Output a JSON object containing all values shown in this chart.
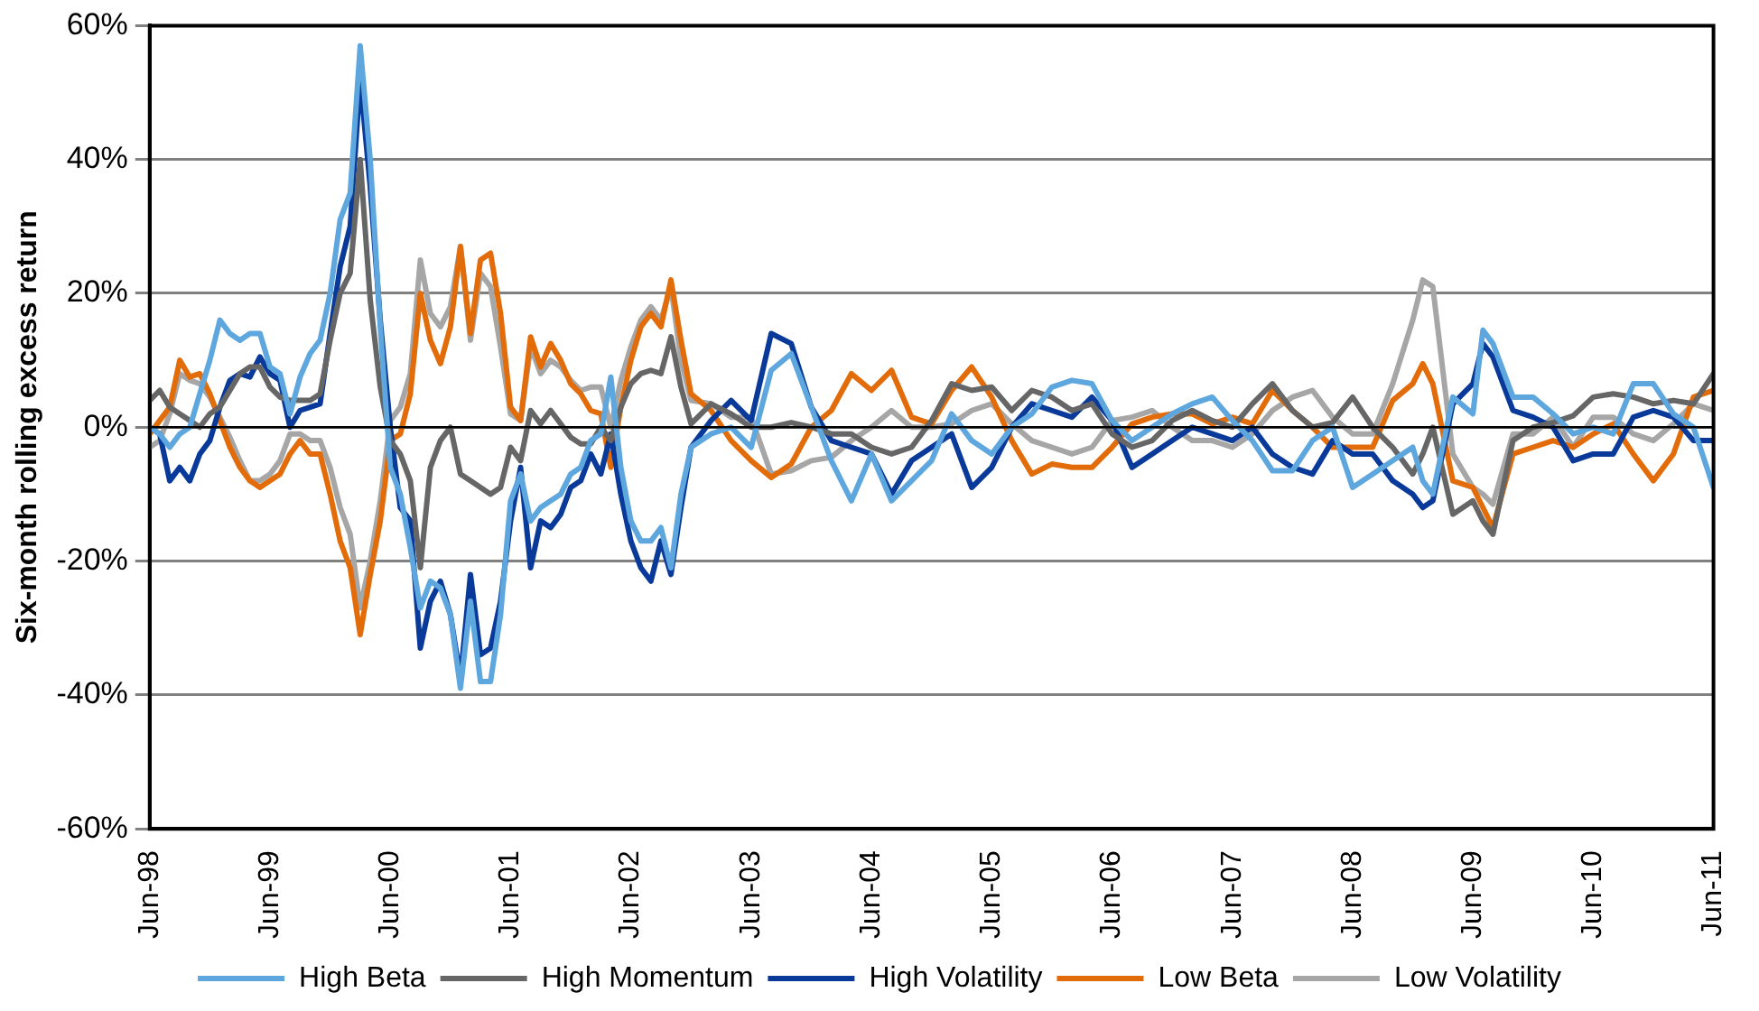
{
  "chart_data": {
    "type": "line",
    "ylabel": "Six-month rolling excess return",
    "x": [
      "1998-06",
      "1998-07",
      "1998-08",
      "1998-09",
      "1998-10",
      "1998-11",
      "1998-12",
      "1999-01",
      "1999-02",
      "1999-03",
      "1999-04",
      "1999-05",
      "1999-06",
      "1999-07",
      "1999-08",
      "1999-09",
      "1999-10",
      "1999-11",
      "1999-12",
      "2000-01",
      "2000-02",
      "2000-03",
      "2000-04",
      "2000-05",
      "2000-06",
      "2000-07",
      "2000-08",
      "2000-09",
      "2000-10",
      "2000-11",
      "2000-12",
      "2001-01",
      "2001-02",
      "2001-03",
      "2001-04",
      "2001-05",
      "2001-06",
      "2001-07",
      "2001-08",
      "2001-09",
      "2001-10",
      "2001-11",
      "2001-12",
      "2002-01",
      "2002-02",
      "2002-03",
      "2002-04",
      "2002-05",
      "2002-06",
      "2002-07",
      "2002-08",
      "2002-09",
      "2002-10",
      "2002-11",
      "2002-12",
      "2003-02",
      "2003-04",
      "2003-06",
      "2003-08",
      "2003-10",
      "2003-12",
      "2004-02",
      "2004-04",
      "2004-06",
      "2004-08",
      "2004-10",
      "2004-12",
      "2005-02",
      "2005-04",
      "2005-06",
      "2005-08",
      "2005-10",
      "2005-12",
      "2006-02",
      "2006-04",
      "2006-06",
      "2006-08",
      "2006-10",
      "2006-12",
      "2007-02",
      "2007-04",
      "2007-06",
      "2007-08",
      "2007-10",
      "2007-12",
      "2008-02",
      "2008-04",
      "2008-06",
      "2008-08",
      "2008-10",
      "2008-12",
      "2009-01",
      "2009-02",
      "2009-04",
      "2009-06",
      "2009-07",
      "2009-08",
      "2009-10",
      "2009-12",
      "2010-02",
      "2010-04",
      "2010-06",
      "2010-08",
      "2010-10",
      "2010-12",
      "2011-02",
      "2011-04",
      "2011-06"
    ],
    "series": [
      {
        "name": "High Beta",
        "color": "#5ea7de",
        "values": [
          0,
          -1,
          -3,
          -1,
          0,
          5,
          10,
          16,
          14,
          13,
          14,
          14,
          9,
          8,
          2,
          7.5,
          11,
          13,
          20,
          31,
          35,
          57,
          40,
          15,
          -6,
          -10,
          -18,
          -27,
          -23,
          -24,
          -28,
          -39,
          -26,
          -38,
          -38,
          -28,
          -11,
          -7,
          -14,
          -12,
          -11,
          -10,
          -7,
          -6,
          -2,
          -1,
          7.5,
          -6,
          -14,
          -17,
          -17,
          -15,
          -21,
          -10,
          -3,
          -1,
          0,
          -3,
          8.5,
          11,
          3,
          -5,
          -11,
          -4,
          -11,
          -8,
          -5,
          2,
          -2,
          -4,
          0,
          2,
          6,
          7,
          6.5,
          1,
          -2,
          0,
          2,
          3.5,
          4.5,
          1,
          -2,
          -6.5,
          -6.5,
          -2,
          0,
          -9,
          -7,
          -5,
          -3,
          -8,
          -10,
          4.5,
          2,
          14.5,
          12.5,
          4.5,
          4.5,
          2,
          -1,
          0,
          -1,
          6.5,
          6.5,
          2,
          0,
          -9
        ]
      },
      {
        "name": "High Momentum",
        "color": "#666666",
        "values": [
          4,
          5.5,
          3,
          2,
          1,
          0,
          2,
          3,
          5.5,
          8,
          9,
          9,
          6,
          4.5,
          4,
          4,
          4,
          5,
          13,
          20,
          23,
          40,
          19,
          6,
          -2,
          -4,
          -8,
          -21,
          -6,
          -2,
          0,
          -7,
          -8,
          -9,
          -10,
          -9,
          -3,
          -5,
          2.5,
          0.5,
          2.5,
          0.5,
          -1.5,
          -2.5,
          -2.5,
          0,
          -2,
          3,
          6.5,
          8,
          8.5,
          8,
          13.5,
          6,
          0.5,
          3.5,
          2,
          0,
          0,
          0.7,
          0,
          -1,
          -1,
          -3,
          -4,
          -3,
          1,
          6.5,
          5.5,
          6,
          2.5,
          5.5,
          4.5,
          2.5,
          3.5,
          -1,
          -3,
          -2,
          1,
          2.5,
          1,
          0,
          3.5,
          6.5,
          2.5,
          0,
          0.7,
          4.5,
          0,
          -3,
          -7,
          -4,
          0,
          -13,
          -11,
          -14,
          -16,
          -2,
          0,
          0.7,
          1.7,
          4.5,
          5,
          4.5,
          3.5,
          4,
          3.5,
          8
        ]
      },
      {
        "name": "High Volatility",
        "color": "#0a3a99",
        "values": [
          0,
          -1,
          -8,
          -6,
          -8,
          -4,
          -2,
          3,
          7,
          8,
          7.5,
          10.5,
          8,
          7,
          0,
          2.5,
          3,
          3.5,
          14,
          24,
          30,
          52,
          36,
          16,
          0,
          -12,
          -14,
          -33,
          -26,
          -23,
          -28,
          -37.5,
          -22,
          -34,
          -33,
          -26,
          -14,
          -6,
          -21,
          -14,
          -15,
          -13,
          -9,
          -8,
          -4,
          -7,
          -1,
          -10,
          -17,
          -21,
          -23,
          -17,
          -22,
          -12,
          -3,
          1,
          4,
          1,
          14,
          12.5,
          3,
          -2,
          -3,
          -4,
          -10,
          -5,
          -3,
          -1,
          -9,
          -6,
          0,
          3.5,
          2.5,
          1.5,
          4.5,
          1,
          -6,
          -4,
          -2,
          0,
          -1,
          -2,
          0,
          -4,
          -6,
          -7,
          -2,
          -4,
          -4,
          -8,
          -10,
          -12,
          -11,
          3.5,
          6.5,
          12.5,
          10.5,
          2.5,
          1.5,
          0,
          -5,
          -4,
          -4,
          1.5,
          2.5,
          1.5,
          -2,
          -2
        ]
      },
      {
        "name": "Low Beta",
        "color": "#e36c0a",
        "values": [
          -1,
          1,
          3,
          10,
          7.5,
          8,
          5,
          1,
          -3,
          -6,
          -8,
          -9,
          -8,
          -7,
          -4,
          -2,
          -4,
          -4,
          -10,
          -17,
          -21,
          -31,
          -22,
          -14,
          -2,
          -1,
          5,
          20,
          13,
          9.5,
          15,
          27,
          14,
          25,
          26,
          17,
          3,
          1,
          13.5,
          9,
          12.5,
          10,
          6.5,
          5,
          2.5,
          2,
          -6,
          3,
          10,
          15,
          17,
          15,
          22,
          13,
          5,
          2.5,
          -2,
          -5,
          -7.5,
          -5.5,
          0,
          2.5,
          8,
          5.5,
          8.5,
          1.5,
          0.5,
          5.5,
          9,
          4.5,
          -2,
          -7,
          -5.5,
          -6,
          -6,
          -3,
          0.5,
          1.5,
          2,
          2,
          0.5,
          1.5,
          0.5,
          5.5,
          2.5,
          0,
          -3,
          -3,
          -3,
          4,
          6.5,
          9.5,
          6.5,
          -8,
          -9,
          -12,
          -15,
          -4,
          -3,
          -2,
          -3,
          -1,
          0.5,
          -4,
          -8,
          -4,
          4.5,
          5.5
        ]
      },
      {
        "name": "Low Volatility",
        "color": "#a6a6a6",
        "values": [
          -3,
          -2,
          2,
          8,
          7,
          6.5,
          4.5,
          1.5,
          -1.5,
          -5,
          -8,
          -8,
          -7,
          -5,
          -1,
          -1,
          -2,
          -2,
          -6,
          -12,
          -16,
          -27,
          -20,
          -11,
          1,
          3,
          8,
          25,
          17,
          15,
          18,
          27,
          13,
          23,
          21,
          12,
          2,
          1,
          12,
          8,
          10,
          9,
          7,
          5.5,
          6,
          6,
          0,
          7,
          12,
          16,
          18,
          16,
          21,
          10,
          4,
          3.5,
          1.5,
          1.5,
          -7,
          -6.5,
          -5,
          -4.5,
          -2,
          0,
          2.5,
          0,
          0,
          0.5,
          2.5,
          3.5,
          0.5,
          -2,
          -3,
          -4,
          -3,
          1,
          1.5,
          2.5,
          0,
          -2,
          -2,
          -3,
          -1,
          2.5,
          4.5,
          5.5,
          1.5,
          -1,
          -1,
          6.5,
          16,
          22,
          21,
          -4,
          -9,
          -10,
          -11.5,
          -1,
          -1,
          1.5,
          -3,
          1.5,
          1.5,
          -1,
          -2,
          0.5,
          3.5,
          2.5
        ]
      }
    ],
    "xlim": [
      "1998-06",
      "2011-06"
    ],
    "xticks": [
      {
        "value": "1998-06",
        "label": "Jun-98"
      },
      {
        "value": "1999-06",
        "label": "Jun-99"
      },
      {
        "value": "2000-06",
        "label": "Jun-00"
      },
      {
        "value": "2001-06",
        "label": "Jun-01"
      },
      {
        "value": "2002-06",
        "label": "Jun-02"
      },
      {
        "value": "2003-06",
        "label": "Jun-03"
      },
      {
        "value": "2004-06",
        "label": "Jun-04"
      },
      {
        "value": "2005-06",
        "label": "Jun-05"
      },
      {
        "value": "2006-06",
        "label": "Jun-06"
      },
      {
        "value": "2007-06",
        "label": "Jun-07"
      },
      {
        "value": "2008-06",
        "label": "Jun-08"
      },
      {
        "value": "2009-06",
        "label": "Jun-09"
      },
      {
        "value": "2010-06",
        "label": "Jun-10"
      },
      {
        "value": "2011-06",
        "label": "Jun-11"
      }
    ],
    "ylim": [
      -60,
      60
    ],
    "yticks": [
      {
        "value": -60,
        "label": "-60%"
      },
      {
        "value": -40,
        "label": "-40%"
      },
      {
        "value": -20,
        "label": "-20%"
      },
      {
        "value": 0,
        "label": "0%"
      },
      {
        "value": 20,
        "label": "20%"
      },
      {
        "value": 40,
        "label": "40%"
      },
      {
        "value": 60,
        "label": "60%"
      }
    ],
    "grid": "y",
    "legend": "bottom"
  }
}
